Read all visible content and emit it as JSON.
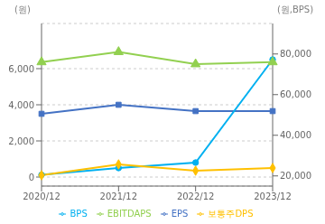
{
  "chart_data": {
    "type": "line",
    "categories": [
      "2020/12",
      "2021/12",
      "2022/12",
      "2023/12"
    ],
    "series": [
      {
        "name": "EPS",
        "color": "#4472C4",
        "marker": "square",
        "values": [
          3500,
          4000,
          3650,
          3650
        ]
      },
      {
        "name": "BPS",
        "color": "#00B0F0",
        "marker": "circle",
        "values": [
          120,
          500,
          800,
          6500
        ]
      },
      {
        "name": "EBITDAPS",
        "color": "#92D050",
        "marker": "triangle",
        "axis": "y2",
        "values": [
          76000,
          81000,
          75000,
          76000
        ]
      },
      {
        "name": "보통주DPS",
        "color": "#FFC000",
        "marker": "diamond",
        "values": [
          100,
          700,
          350,
          500
        ]
      }
    ],
    "ylim": [
      -500,
      8500
    ],
    "yticks": [
      0,
      {
        "value": 2000,
        "label": "2,000"
      },
      {
        "value": 4000,
        "label": "4,000"
      },
      {
        "value": 6000,
        "label": "6,000"
      }
    ],
    "y2lim": [
      15000,
      95000
    ],
    "y2ticks": [
      {
        "value": 20000,
        "label": "20,000"
      },
      {
        "value": 40000,
        "label": "40,000"
      },
      {
        "value": 60000,
        "label": "60,000"
      },
      {
        "value": 80000,
        "label": "80,000"
      }
    ],
    "ylabel": "(원)",
    "y2label": "(원,BPS)",
    "grid": true,
    "legend": "bottom"
  }
}
